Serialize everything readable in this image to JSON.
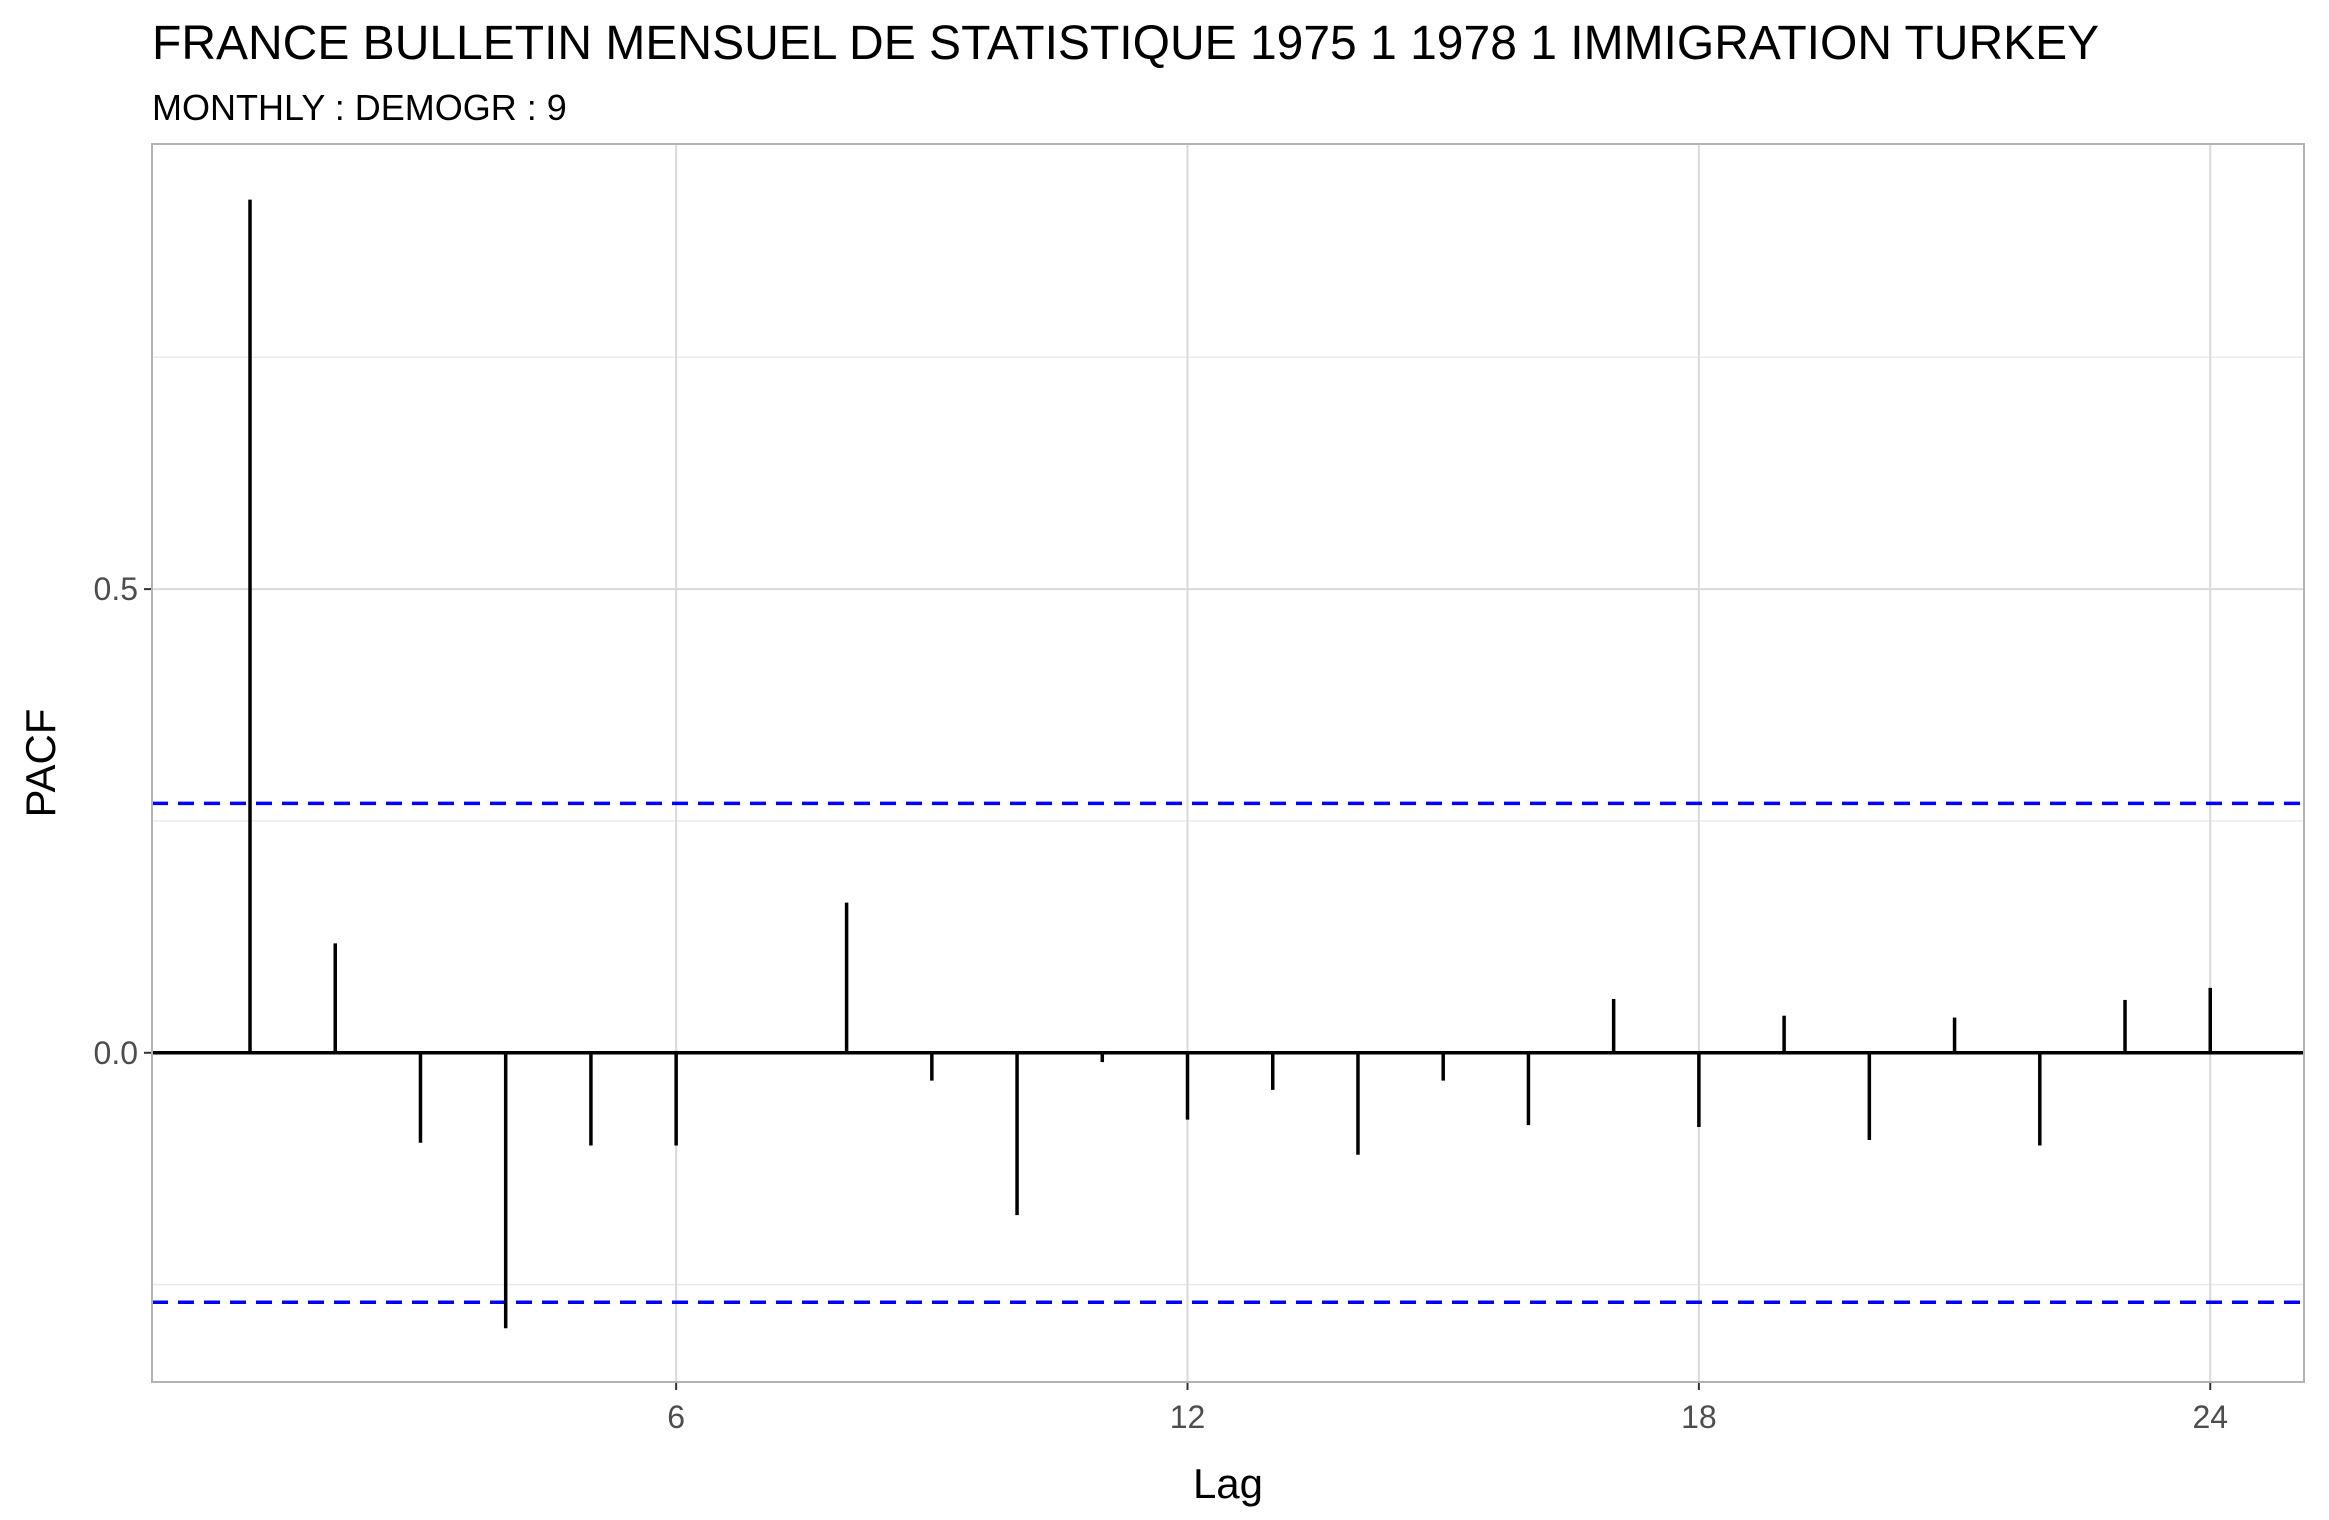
{
  "chart_data": {
    "type": "bar",
    "title": "FRANCE BULLETIN MENSUEL DE STATISTIQUE 1975 1 1978 1 IMMIGRATION TURKEY",
    "subtitle": "MONTHLY : DEMOGR : 9",
    "xlabel": "Lag",
    "ylabel": "PACF",
    "x": [
      1,
      2,
      3,
      4,
      5,
      6,
      7,
      8,
      9,
      10,
      11,
      12,
      13,
      14,
      15,
      16,
      17,
      18,
      19,
      20,
      21,
      22,
      23,
      24
    ],
    "values": [
      0.92,
      0.118,
      -0.097,
      -0.297,
      -0.1,
      -0.1,
      0.001,
      0.162,
      -0.03,
      -0.175,
      -0.01,
      -0.072,
      -0.04,
      -0.11,
      -0.03,
      -0.078,
      0.058,
      -0.08,
      0.04,
      -0.094,
      0.038,
      -0.1,
      0.057,
      0.07
    ],
    "confidence_bounds": [
      0.269,
      -0.269
    ],
    "xlim": [
      -0.15,
      25.1
    ],
    "ylim": [
      -0.355,
      0.98
    ],
    "x_ticks": [
      6,
      12,
      18,
      24
    ],
    "y_ticks": [
      0.0,
      0.5
    ],
    "y_tick_labels": [
      "0.0",
      "0.5"
    ],
    "y_minor_gridlines": [
      -0.25,
      0.25,
      0.75
    ],
    "grid": true,
    "legend": "none",
    "colors": {
      "bars": "#000000",
      "confidence": "#0000ff",
      "grid": "#d9d9d9",
      "minor_grid": "#ebebeb",
      "panel_border": "#b3b3b3"
    }
  }
}
